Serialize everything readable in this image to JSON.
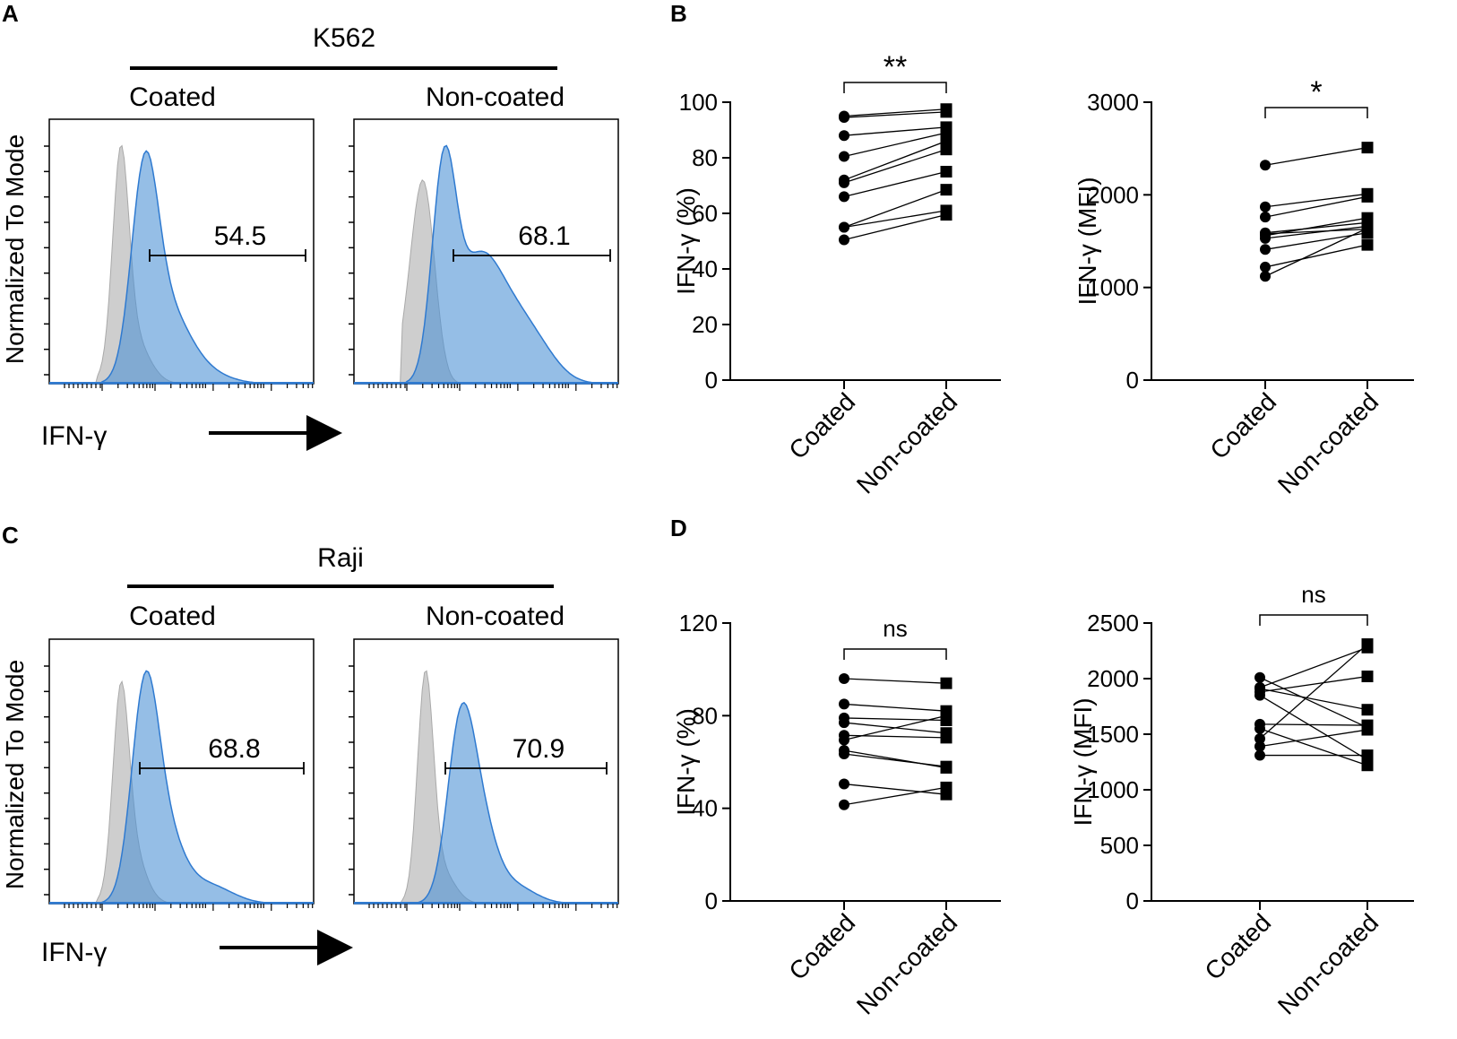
{
  "colors": {
    "isotype": "#bdbdbd",
    "stained": "#4f93d6",
    "stained_line": "#2f7ad0",
    "ink": "#000000"
  },
  "chart_data": [
    {
      "id": "A",
      "type": "histogram",
      "panel_letter": "A",
      "cell_line": "K562",
      "y_axis_label": "Normalized To Mode",
      "x_axis_label": "IFN-γ",
      "subplots": [
        {
          "title": "Coated",
          "gate_value": "54.5"
        },
        {
          "title": "Non-coated",
          "gate_value": "68.1"
        }
      ]
    },
    {
      "id": "B1",
      "type": "paired-scatter",
      "panel_letter": "B",
      "ylabel": "IFN-γ (%)",
      "ylim": [
        0,
        100
      ],
      "yticks": [
        0,
        20,
        40,
        60,
        80,
        100
      ],
      "categories": [
        "Coated",
        "Non-coated"
      ],
      "significance": "**",
      "pairs": [
        [
          50.5,
          59.5
        ],
        [
          55,
          61
        ],
        [
          55,
          68.5
        ],
        [
          66,
          75
        ],
        [
          71,
          83
        ],
        [
          72,
          86
        ],
        [
          80.5,
          89
        ],
        [
          88,
          91
        ],
        [
          94.5,
          96.5
        ],
        [
          95,
          97.5
        ]
      ]
    },
    {
      "id": "B2",
      "type": "paired-scatter",
      "ylabel": "IFN-γ (MFI)",
      "ylim": [
        0,
        3000
      ],
      "yticks": [
        0,
        1000,
        2000,
        3000
      ],
      "categories": [
        "Coated",
        "Non-coated"
      ],
      "significance": "*",
      "pairs": [
        [
          1120,
          1640
        ],
        [
          1220,
          1460
        ],
        [
          1410,
          1590
        ],
        [
          1530,
          1660
        ],
        [
          1560,
          1750
        ],
        [
          1580,
          1630
        ],
        [
          1590,
          1700
        ],
        [
          1760,
          1980
        ],
        [
          1870,
          2010
        ],
        [
          2320,
          2510
        ]
      ]
    },
    {
      "id": "C",
      "type": "histogram",
      "panel_letter": "C",
      "cell_line": "Raji",
      "y_axis_label": "Normalized To Mode",
      "x_axis_label": "IFN-γ",
      "subplots": [
        {
          "title": "Coated",
          "gate_value": "68.8"
        },
        {
          "title": "Non-coated",
          "gate_value": "70.9"
        }
      ]
    },
    {
      "id": "D1",
      "type": "paired-scatter",
      "panel_letter": "D",
      "ylabel": "IFN-γ (%)",
      "ylim": [
        0,
        120
      ],
      "yticks": [
        0,
        40,
        80,
        120
      ],
      "categories": [
        "Coated",
        "Non-coated"
      ],
      "significance": "ns",
      "pairs": [
        [
          41.5,
          49
        ],
        [
          50.5,
          46
        ],
        [
          63.5,
          58
        ],
        [
          65,
          57.5
        ],
        [
          69.5,
          80
        ],
        [
          71.5,
          70.5
        ],
        [
          77,
          72.5
        ],
        [
          79,
          78
        ],
        [
          85,
          82
        ],
        [
          96,
          94
        ]
      ]
    },
    {
      "id": "D2",
      "type": "paired-scatter",
      "ylabel": "IFN-γ (MFI)",
      "ylim": [
        0,
        2500
      ],
      "yticks": [
        0,
        500,
        1000,
        1500,
        2000,
        2500
      ],
      "categories": [
        "Coated",
        "Non-coated"
      ],
      "significance": "ns",
      "pairs": [
        [
          1310,
          1310
        ],
        [
          1390,
          1540
        ],
        [
          1460,
          2310
        ],
        [
          1550,
          1220
        ],
        [
          1590,
          1580
        ],
        [
          1850,
          1270
        ],
        [
          1880,
          2020
        ],
        [
          1910,
          1720
        ],
        [
          1920,
          2280
        ],
        [
          2010,
          1560
        ]
      ]
    }
  ]
}
